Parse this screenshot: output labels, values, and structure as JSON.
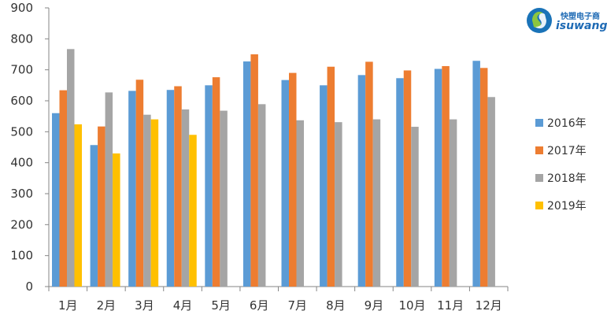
{
  "logo": {
    "cn_text": "快塑电子商",
    "en_text": "isuwang.co"
  },
  "chart_data": {
    "type": "bar",
    "categories": [
      "1月",
      "2月",
      "3月",
      "4月",
      "5月",
      "6月",
      "7月",
      "8月",
      "9月",
      "10月",
      "11月",
      "12月"
    ],
    "series": [
      {
        "name": "2016年",
        "color": "#5b9bd5",
        "values": [
          560,
          457,
          632,
          635,
          650,
          727,
          667,
          650,
          683,
          673,
          703,
          729
        ]
      },
      {
        "name": "2017年",
        "color": "#ed7d31",
        "values": [
          634,
          517,
          668,
          647,
          676,
          750,
          690,
          710,
          726,
          698,
          712,
          706
        ]
      },
      {
        "name": "2018年",
        "color": "#a5a5a5",
        "values": [
          767,
          627,
          555,
          572,
          568,
          589,
          537,
          531,
          540,
          516,
          540,
          612
        ]
      },
      {
        "name": "2019年",
        "color": "#ffc000",
        "values": [
          524,
          430,
          540,
          490,
          null,
          null,
          null,
          null,
          null,
          null,
          null,
          null
        ]
      }
    ],
    "yticks": [
      "0",
      "100",
      "200",
      "300",
      "400",
      "500",
      "600",
      "700",
      "800",
      "900"
    ],
    "ylim": [
      0,
      900
    ],
    "grid": false,
    "legend_position": "right"
  }
}
